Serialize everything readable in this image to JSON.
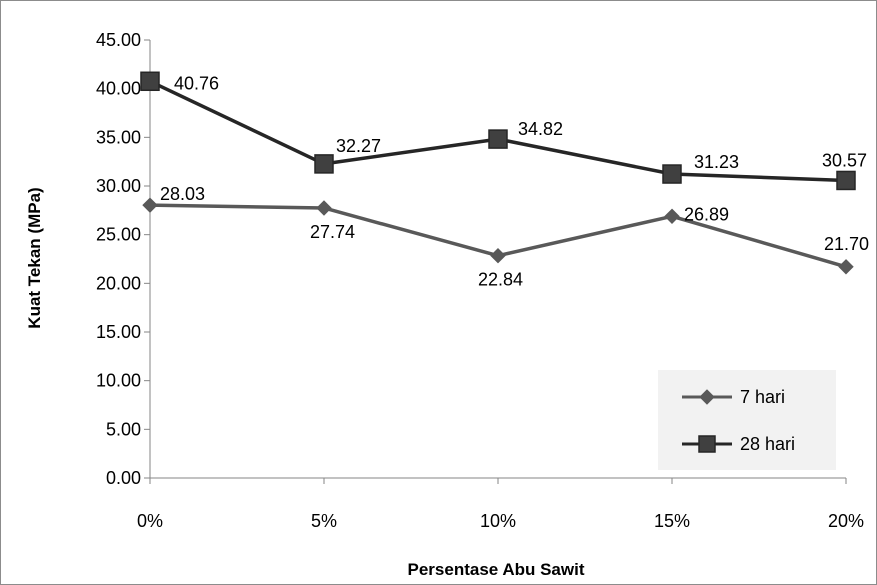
{
  "chart_data": {
    "type": "line",
    "categories": [
      "0%",
      "5%",
      "10%",
      "15%",
      "20%"
    ],
    "series": [
      {
        "name": "7 hari",
        "values": [
          28.03,
          27.74,
          22.84,
          26.89,
          21.7
        ],
        "color": "#595959",
        "marker": "diamond",
        "labels": [
          "28.03",
          "27.74",
          "22.84",
          "26.89",
          "21.70"
        ]
      },
      {
        "name": "28 hari",
        "values": [
          40.76,
          32.27,
          34.82,
          31.23,
          30.57
        ],
        "color": "#262626",
        "marker": "square",
        "labels": [
          "40.76",
          "32.27",
          "34.82",
          "31.23",
          "30.57"
        ]
      }
    ],
    "yticks": [
      "0.00",
      "5.00",
      "10.00",
      "15.00",
      "20.00",
      "25.00",
      "30.00",
      "35.00",
      "40.00",
      "45.00"
    ],
    "ylim": [
      0,
      45
    ],
    "xlabel": "Persentase Abu Sawit",
    "ylabel": "Kuat Tekan (MPa)",
    "legend_position": "bottom-right",
    "grid": false
  }
}
